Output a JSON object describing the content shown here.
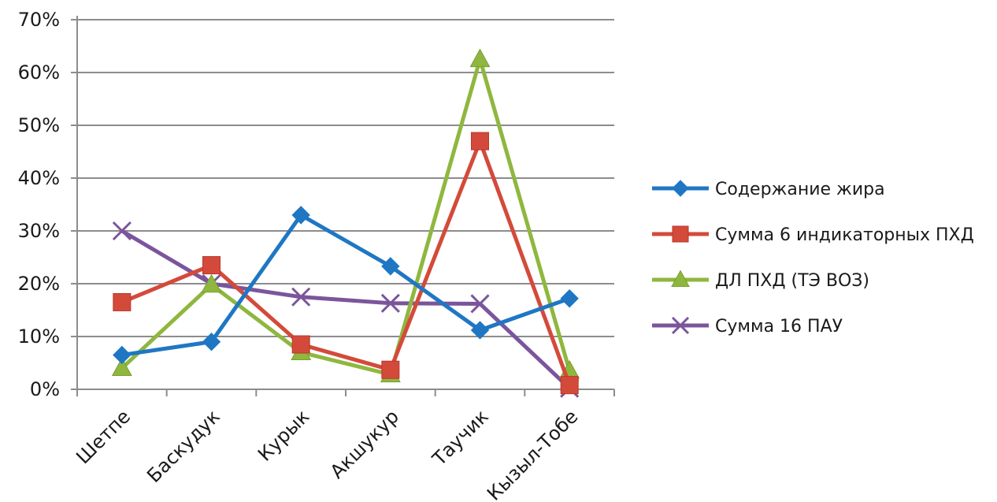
{
  "chart_data": {
    "type": "line",
    "title": "",
    "xlabel": "",
    "ylabel": "",
    "categories": [
      "Шетпе",
      "Баскудук",
      "Курык",
      "Акшукур",
      "Таучик",
      "Кызыл-Тобе"
    ],
    "y_ticks": [
      "0%",
      "10%",
      "20%",
      "30%",
      "40%",
      "50%",
      "60%",
      "70%"
    ],
    "ylim": [
      0,
      70
    ],
    "grid": true,
    "legend_position": "right",
    "series": [
      {
        "name": "Содержание жира",
        "color": "#1f77c4",
        "marker": "diamond",
        "values": [
          6.5,
          9,
          33,
          23.3,
          11.2,
          17.2
        ]
      },
      {
        "name": "Сумма 6 индикаторных ПХД",
        "color": "#d44a3a",
        "marker": "square",
        "values": [
          16.5,
          23.5,
          8.5,
          3.7,
          47,
          0.8
        ]
      },
      {
        "name": "ДЛ ПХД (ТЭ ВОЗ)",
        "color": "#8fb73f",
        "marker": "triangle",
        "values": [
          4,
          19.8,
          7,
          2.8,
          62.5,
          3.5
        ]
      },
      {
        "name": "Сумма 16 ПАУ",
        "color": "#7b559c",
        "marker": "x",
        "values": [
          30,
          20,
          17.5,
          16.3,
          16.2,
          0.2
        ]
      }
    ]
  }
}
